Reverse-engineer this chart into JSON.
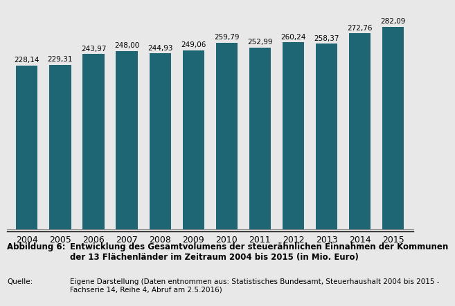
{
  "years": [
    "2004",
    "2005",
    "2006",
    "2007",
    "2008",
    "2009",
    "2010",
    "2011",
    "2012",
    "2013",
    "2014",
    "2015"
  ],
  "values": [
    228.14,
    229.31,
    243.97,
    248.0,
    244.93,
    249.06,
    259.79,
    252.99,
    260.24,
    258.37,
    272.76,
    282.09
  ],
  "labels": [
    "228,14",
    "229,31",
    "243,97",
    "248,00",
    "244,93",
    "249,06",
    "259,79",
    "252,99",
    "260,24",
    "258,37",
    "272,76",
    "282,09"
  ],
  "bar_color": "#1f6674",
  "background_color": "#e8e8e8",
  "plot_background": "#e8e8e8",
  "ylim": [
    0,
    310
  ],
  "caption_label": "Abbildung 6:",
  "caption_text": "Entwicklung des Gesamtvolumens der steuerähnlichen Einnahmen der Kommunen\nder 13 Flächenländer im Zeitraum 2004 bis 2015 (in Mio. Euro)",
  "source_label": "Quelle:",
  "source_text": "Eigene Darstellung (Daten entnommen aus: Statistisches Bundesamt, Steuerhaushalt 2004 bis 2015 -\nFachserie 14, Reihe 4, Abruf am 2.5.2016)"
}
